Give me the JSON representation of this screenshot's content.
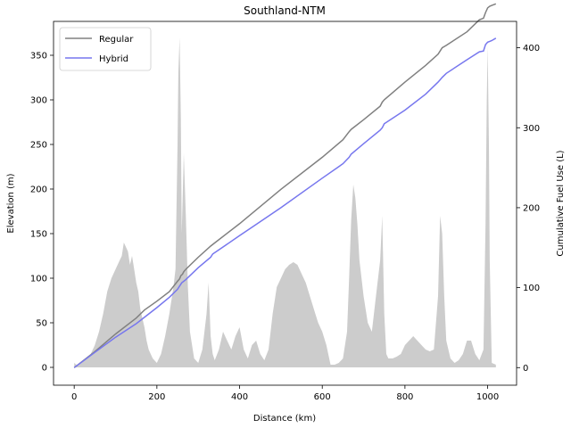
{
  "chart_data": {
    "type": "line",
    "title": "Southland-NTM",
    "xlabel": "Distance (km)",
    "ylabel": "Elevation (m)",
    "y2label": "Cumulative Fuel Use (L)",
    "xlim": [
      -50,
      1070
    ],
    "ylim": [
      -20,
      388
    ],
    "y2lim": [
      -22,
      433
    ],
    "xticks": [
      0,
      200,
      400,
      600,
      800,
      1000
    ],
    "yticks": [
      0,
      50,
      100,
      150,
      200,
      250,
      300,
      350
    ],
    "y2ticks": [
      0,
      100,
      200,
      300,
      400
    ],
    "legend_position": "top-left",
    "elevation": {
      "name": "Elevation",
      "axis": "left",
      "color": "#cccccc",
      "x": [
        0,
        5,
        10,
        15,
        20,
        30,
        40,
        50,
        60,
        70,
        80,
        90,
        100,
        110,
        115,
        120,
        125,
        130,
        135,
        140,
        145,
        150,
        155,
        160,
        165,
        170,
        175,
        180,
        190,
        200,
        210,
        220,
        230,
        240,
        245,
        250,
        252,
        255,
        258,
        260,
        265,
        270,
        275,
        280,
        290,
        300,
        310,
        320,
        325,
        330,
        335,
        340,
        350,
        360,
        370,
        380,
        390,
        400,
        410,
        420,
        430,
        440,
        450,
        460,
        470,
        480,
        490,
        500,
        510,
        520,
        530,
        540,
        550,
        560,
        570,
        580,
        590,
        600,
        610,
        620,
        630,
        640,
        650,
        660,
        665,
        670,
        675,
        680,
        685,
        690,
        700,
        710,
        720,
        730,
        740,
        745,
        750,
        755,
        760,
        770,
        780,
        790,
        800,
        810,
        820,
        830,
        840,
        850,
        860,
        870,
        880,
        885,
        890,
        895,
        900,
        910,
        920,
        930,
        940,
        950,
        960,
        970,
        980,
        990,
        995,
        998,
        1000,
        1003,
        1005,
        1010,
        1020
      ],
      "y": [
        5,
        3,
        2,
        4,
        6,
        10,
        15,
        25,
        40,
        60,
        85,
        100,
        110,
        120,
        125,
        140,
        135,
        130,
        115,
        125,
        110,
        95,
        85,
        65,
        55,
        45,
        30,
        20,
        10,
        5,
        15,
        35,
        60,
        90,
        110,
        250,
        330,
        370,
        280,
        150,
        240,
        170,
        90,
        40,
        10,
        5,
        20,
        60,
        95,
        35,
        15,
        8,
        20,
        40,
        30,
        20,
        35,
        45,
        20,
        10,
        25,
        30,
        15,
        8,
        20,
        60,
        90,
        100,
        110,
        115,
        118,
        115,
        105,
        95,
        80,
        65,
        50,
        40,
        25,
        3,
        3,
        5,
        10,
        40,
        100,
        165,
        205,
        190,
        160,
        120,
        80,
        50,
        40,
        80,
        120,
        170,
        60,
        15,
        10,
        10,
        12,
        15,
        25,
        30,
        35,
        30,
        25,
        20,
        18,
        20,
        80,
        170,
        150,
        80,
        30,
        10,
        5,
        8,
        15,
        30,
        30,
        15,
        8,
        20,
        160,
        300,
        360,
        250,
        120,
        5,
        3
      ]
    },
    "series": [
      {
        "name": "Regular",
        "axis": "right",
        "color": "#808080",
        "x": [
          0,
          50,
          100,
          150,
          170,
          200,
          230,
          250,
          255,
          258,
          262,
          265,
          270,
          300,
          330,
          340,
          400,
          500,
          600,
          650,
          665,
          670,
          700,
          740,
          745,
          750,
          800,
          850,
          880,
          885,
          890,
          900,
          950,
          980,
          990,
          995,
          1000,
          1005,
          1010,
          1020
        ],
        "y": [
          0,
          20,
          42,
          62,
          72,
          83,
          95,
          108,
          111,
          115,
          117,
          120,
          123,
          138,
          152,
          156,
          180,
          223,
          263,
          285,
          295,
          298,
          310,
          327,
          332,
          335,
          357,
          378,
          392,
          396,
          400,
          403,
          420,
          435,
          437,
          444,
          450,
          452,
          453,
          455
        ]
      },
      {
        "name": "Hybrid",
        "axis": "right",
        "color": "#7777ee",
        "x": [
          0,
          50,
          100,
          150,
          200,
          230,
          250,
          255,
          260,
          265,
          270,
          300,
          330,
          335,
          400,
          500,
          600,
          650,
          665,
          670,
          700,
          740,
          745,
          750,
          800,
          850,
          880,
          885,
          890,
          900,
          950,
          980,
          990,
          995,
          1000,
          1005,
          1010,
          1020
        ],
        "y": [
          0,
          19,
          38,
          55,
          75,
          88,
          98,
          102,
          106,
          108,
          110,
          125,
          138,
          142,
          165,
          200,
          237,
          255,
          263,
          267,
          280,
          297,
          300,
          305,
          322,
          342,
          357,
          360,
          363,
          368,
          385,
          395,
          396,
          404,
          407,
          408,
          409,
          412
        ]
      }
    ]
  }
}
